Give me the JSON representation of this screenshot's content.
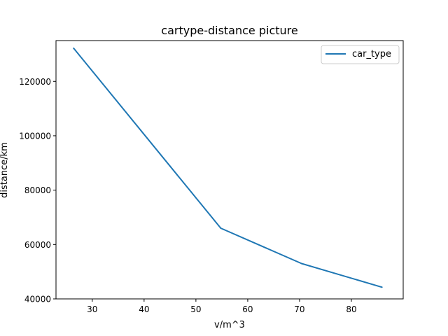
{
  "chart_data": {
    "type": "line",
    "title": "cartype-distance picture",
    "xlabel": "v/m^3",
    "ylabel": "distance/km",
    "xlim": [
      23,
      90
    ],
    "ylim": [
      40000,
      135000
    ],
    "xticks": [
      30,
      40,
      50,
      60,
      70,
      80
    ],
    "yticks": [
      40000,
      60000,
      80000,
      100000,
      120000
    ],
    "grid": false,
    "legend_position": "top-right",
    "series": [
      {
        "name": "car_type",
        "color": "#1f77b4",
        "x": [
          26.4,
          54.8,
          70.4,
          85.9
        ],
        "y": [
          132200,
          66000,
          53000,
          44300
        ]
      }
    ]
  }
}
